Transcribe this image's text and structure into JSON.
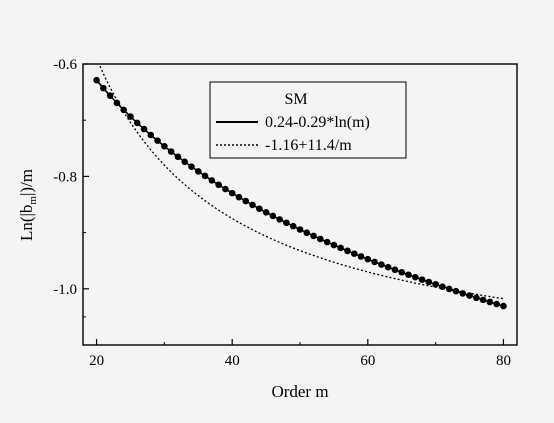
{
  "chart_data": {
    "type": "line",
    "xlabel": "Order m",
    "ylabel_main": "Ln(|b",
    "ylabel_sub": "m",
    "ylabel_end": "|)/m",
    "xlim": [
      18,
      82
    ],
    "ylim": [
      -1.1,
      -0.6
    ],
    "xticks": [
      20,
      40,
      60,
      80
    ],
    "xtick_labels": [
      "20",
      "40",
      "60",
      "80"
    ],
    "yticks": [
      -1.0,
      -0.8,
      -0.6
    ],
    "ytick_labels": [
      "-1.0",
      "-0.8",
      "-0.6"
    ],
    "grid": false,
    "legend_position": "top-right",
    "legend_title": "SM",
    "series": [
      {
        "name": "0.24-0.29*ln(m)",
        "style": "solid",
        "markers": "filled-circle",
        "marker_x_start": 20,
        "marker_x_end": 80,
        "marker_x_step": 1,
        "intercept": 0.24,
        "log_coefficient": -0.29
      },
      {
        "name": "-1.16+11.4/m",
        "style": "dotted",
        "intercept": -1.16,
        "reciprocal_coefficient": 11.4
      }
    ],
    "colors": {
      "line": "#000000",
      "background": "#f4f4f4"
    }
  }
}
